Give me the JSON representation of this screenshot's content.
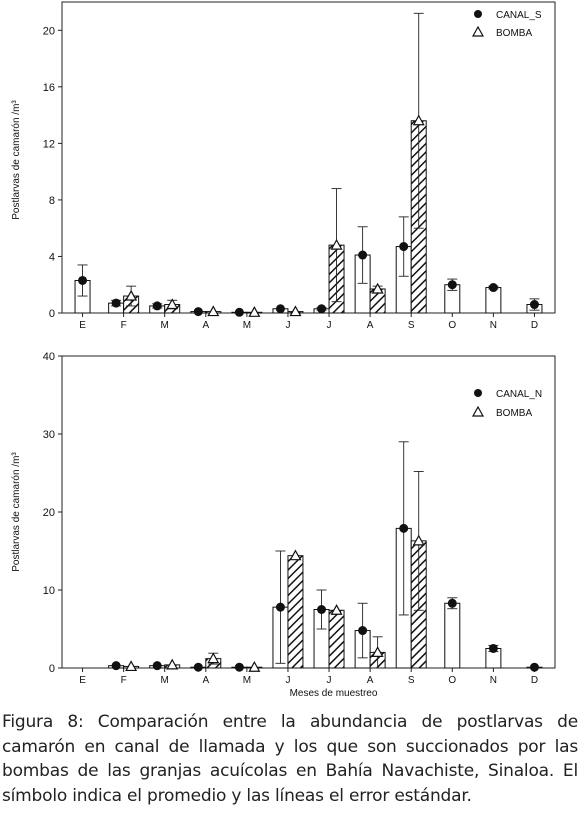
{
  "figure": {
    "caption": "Figura 8: Comparación entre la abundancia de postlarvas de camarón en canal de llamada y los que son succionados por las bombas de las granjas acuícolas en Bahía Navachiste, Sinaloa. El símbolo indica el promedio y las líneas el error estándar."
  },
  "chart_data": [
    {
      "type": "bar",
      "panel": "top",
      "categories": [
        "E",
        "F",
        "M",
        "A",
        "M",
        "J",
        "J",
        "A",
        "S",
        "O",
        "N",
        "D"
      ],
      "ylabel": "Postlarvas de camarón /m³",
      "xlabel": "",
      "ylim": [
        0,
        22
      ],
      "yticks": [
        0,
        4,
        8,
        12,
        16,
        20
      ],
      "legend_position": "top-right",
      "series": [
        {
          "name": "CANAL_S",
          "marker": "circle",
          "fill": "open",
          "values": [
            2.3,
            0.7,
            0.5,
            0.1,
            0.05,
            0.3,
            0.3,
            4.1,
            4.7,
            2.0,
            1.8,
            0.6
          ],
          "error": [
            1.1,
            0.2,
            0.15,
            0,
            0,
            0,
            0.1,
            2.0,
            2.1,
            0.4,
            0.1,
            0.4
          ]
        },
        {
          "name": "BOMBA",
          "marker": "triangle",
          "fill": "hatched",
          "values": [
            null,
            1.2,
            0.6,
            0.1,
            0.05,
            0.1,
            4.8,
            1.7,
            13.6,
            null,
            null,
            null
          ],
          "error": [
            0,
            0.7,
            0.3,
            0,
            0,
            0,
            4.0,
            0.2,
            7.6,
            0,
            0,
            0
          ]
        }
      ]
    },
    {
      "type": "bar",
      "panel": "bottom",
      "categories": [
        "E",
        "F",
        "M",
        "A",
        "M",
        "J",
        "J",
        "A",
        "S",
        "O",
        "N",
        "D"
      ],
      "ylabel": "Postlarvas de camarón /m³",
      "xlabel": "Meses de muestreo",
      "ylim": [
        0,
        40
      ],
      "yticks": [
        0,
        10,
        20,
        30,
        40
      ],
      "legend_position": "top-right",
      "series": [
        {
          "name": "CANAL_N",
          "marker": "circle",
          "fill": "open",
          "values": [
            null,
            0.3,
            0.3,
            0.1,
            0.1,
            7.8,
            7.5,
            4.8,
            17.9,
            8.3,
            2.5,
            0.1
          ],
          "error": [
            0,
            0,
            0,
            0,
            0,
            7.2,
            2.5,
            3.5,
            11.1,
            0.7,
            0.4,
            0
          ]
        },
        {
          "name": "BOMBA",
          "marker": "triangle",
          "fill": "hatched",
          "values": [
            null,
            0.2,
            0.4,
            1.2,
            0.1,
            14.4,
            7.4,
            2.0,
            16.3,
            null,
            null,
            null
          ],
          "error": [
            0,
            0,
            0,
            0.7,
            0,
            0,
            0,
            2.0,
            8.9,
            0,
            0,
            0
          ]
        }
      ]
    }
  ]
}
